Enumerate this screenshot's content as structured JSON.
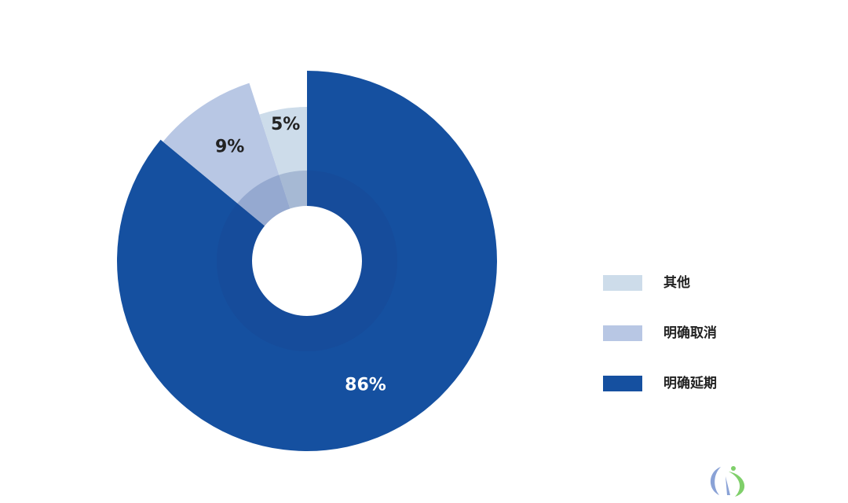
{
  "chart_data": {
    "type": "donut",
    "categories": [
      "明确延期",
      "明确取消",
      "其他"
    ],
    "values": [
      86,
      9,
      5
    ],
    "value_labels": [
      "86%",
      "9%",
      "5%"
    ],
    "colors": [
      "#1550a0",
      "#b8c7e4",
      "#cddcea"
    ]
  }
}
